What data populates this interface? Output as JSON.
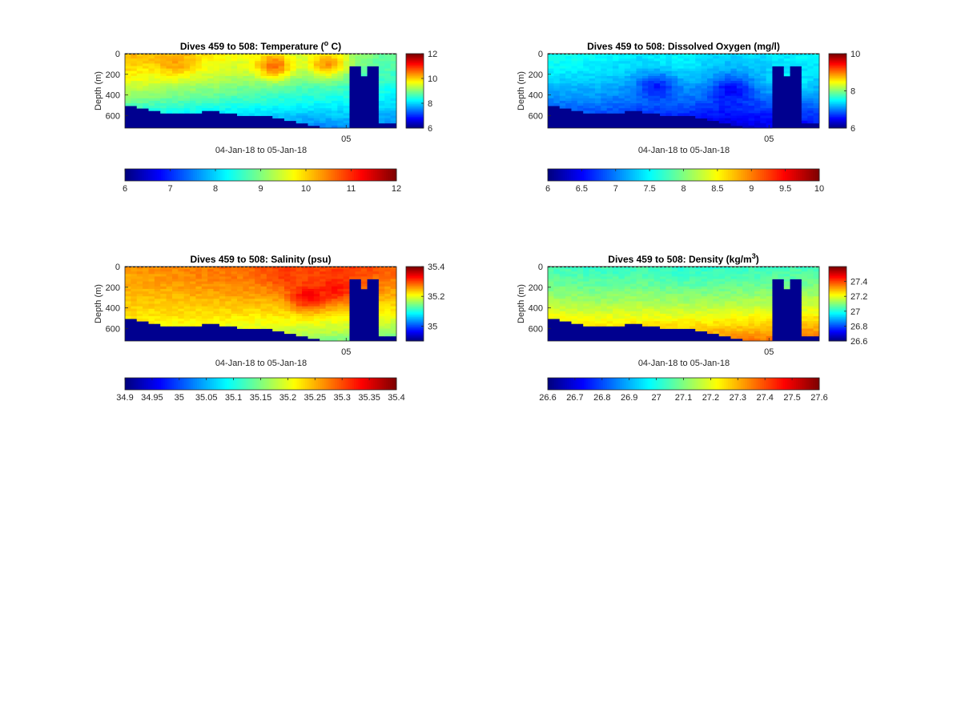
{
  "figure": {
    "colors": {
      "ink": "#262626",
      "background": "#ffffff",
      "masked": "#00008f"
    },
    "colormap": "jet"
  },
  "chart_data": [
    {
      "type": "heatmap",
      "variable": "temperature",
      "title": "Dives 459 to 508: Temperature (",
      "title_sup": "o",
      "title_end": " C)",
      "xlabel": "04-Jan-18 to 05-Jan-18",
      "ylabel": "Depth (m)",
      "x_ticks": [
        "05"
      ],
      "y_ticks": [
        0,
        200,
        400,
        600
      ],
      "ylim": [
        0,
        720
      ],
      "dives": [
        459,
        508
      ],
      "clim": [
        6,
        12
      ],
      "side_colorbar_ticks": [
        "6",
        "8",
        "10",
        "12"
      ],
      "bottom_colorbar_ticks": [
        "6",
        "7",
        "8",
        "9",
        "10",
        "11",
        "12"
      ],
      "surface_profile": [
        10.2,
        10.0,
        9.8,
        9.5,
        9.3,
        9.1,
        8.8
      ],
      "bottom_profile": [
        7.8,
        7.7,
        7.6,
        7.6,
        7.5,
        7.6,
        7.5
      ],
      "warm_patches": [
        [
          0.55,
          0.15,
          10.6
        ],
        [
          0.75,
          0.12,
          10.4
        ],
        [
          0.18,
          0.1,
          10.3
        ]
      ]
    },
    {
      "type": "heatmap",
      "variable": "dissolved_oxygen",
      "title": "Dives 459 to 508: Dissolved Oxygen (mg/l)",
      "xlabel": "04-Jan-18 to 05-Jan-18",
      "ylabel": "Depth (m)",
      "x_ticks": [
        "05"
      ],
      "y_ticks": [
        0,
        200,
        400,
        600
      ],
      "ylim": [
        0,
        720
      ],
      "dives": [
        459,
        508
      ],
      "clim": [
        6,
        10
      ],
      "side_colorbar_ticks": [
        "6",
        "8",
        "10"
      ],
      "bottom_colorbar_ticks": [
        "6",
        "6.5",
        "7",
        "7.5",
        "8",
        "8.5",
        "9",
        "9.5",
        "10"
      ],
      "surface_profile": [
        7.6,
        7.5,
        7.4,
        7.5,
        7.3,
        7.4,
        7.5
      ],
      "bottom_profile": [
        6.5,
        6.6,
        6.5,
        6.4,
        6.3,
        6.4,
        6.5
      ],
      "warm_patches": [
        [
          0.4,
          0.45,
          6.6
        ],
        [
          0.68,
          0.5,
          6.5
        ],
        [
          0.9,
          0.4,
          7.6
        ]
      ]
    },
    {
      "type": "heatmap",
      "variable": "salinity",
      "title": "Dives 459 to 508: Salinity (psu)",
      "xlabel": "04-Jan-18 to 05-Jan-18",
      "ylabel": "Depth (m)",
      "x_ticks": [
        "05"
      ],
      "y_ticks": [
        0,
        200,
        400,
        600
      ],
      "ylim": [
        0,
        720
      ],
      "dives": [
        459,
        508
      ],
      "clim": [
        34.9,
        35.4
      ],
      "side_colorbar_ticks": [
        "35",
        "35.2",
        "35.4"
      ],
      "bottom_colorbar_ticks": [
        "34.9",
        "34.95",
        "35",
        "35.05",
        "35.1",
        "35.15",
        "35.2",
        "35.25",
        "35.3",
        "35.35",
        "35.4"
      ],
      "surface_profile": [
        35.26,
        35.27,
        35.28,
        35.29,
        35.3,
        35.31,
        35.29
      ],
      "bottom_profile": [
        35.2,
        35.19,
        35.18,
        35.17,
        35.16,
        35.15,
        35.14
      ],
      "warm_patches": [
        [
          0.68,
          0.4,
          35.34
        ],
        [
          0.78,
          0.3,
          35.33
        ],
        [
          0.6,
          0.1,
          35.31
        ]
      ]
    },
    {
      "type": "heatmap",
      "variable": "density",
      "title": "Dives 459 to 508: Density (kg/m",
      "title_sup": "3",
      "title_end": ")",
      "xlabel": "04-Jan-18 to 05-Jan-18",
      "ylabel": "Depth (m)",
      "x_ticks": [
        "05"
      ],
      "y_ticks": [
        0,
        200,
        400,
        600
      ],
      "ylim": [
        0,
        720
      ],
      "dives": [
        459,
        508
      ],
      "clim": [
        26.6,
        27.6
      ],
      "side_colorbar_ticks": [
        "26.6",
        "26.8",
        "27",
        "27.2",
        "27.4"
      ],
      "bottom_colorbar_ticks": [
        "26.6",
        "26.7",
        "26.8",
        "26.9",
        "27",
        "27.1",
        "27.2",
        "27.3",
        "27.4",
        "27.5",
        "27.6"
      ],
      "surface_profile": [
        27.05,
        27.03,
        27.04,
        27.02,
        27.03,
        27.04,
        27.05
      ],
      "bottom_profile": [
        27.33,
        27.32,
        27.33,
        27.34,
        27.35,
        27.36,
        27.38
      ],
      "warm_patches": []
    }
  ],
  "seafloor_depth_m": [
    495,
    500,
    505,
    520,
    530,
    540,
    560,
    570,
    555,
    560,
    565,
    560,
    555,
    550,
    550,
    552,
    555,
    560,
    570,
    580,
    590,
    600,
    590,
    595,
    600,
    610,
    620,
    630,
    640,
    660,
    670,
    680,
    690,
    700,
    705,
    700,
    705,
    700,
    100,
    100,
    200,
    100,
    100,
    650,
    650,
    670
  ]
}
